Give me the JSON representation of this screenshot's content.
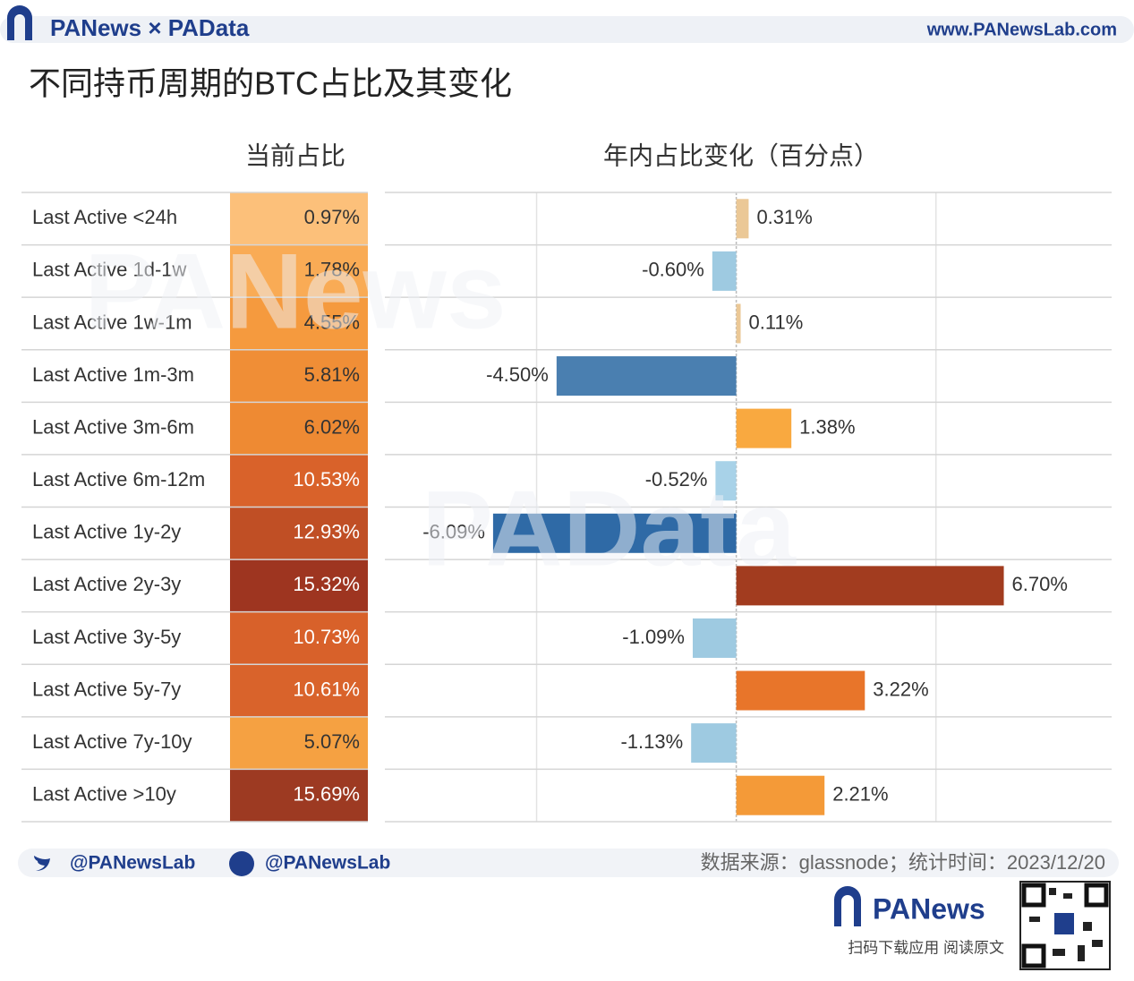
{
  "header": {
    "brand": "PANews × PAData",
    "url": "www.PANewsLab.com",
    "title": "不同持币周期的BTC占比及其变化"
  },
  "watermarks": [
    "PANews",
    "PAData"
  ],
  "current_share": {
    "title": "当前占比",
    "values": [
      0.97,
      1.78,
      4.55,
      5.81,
      6.02,
      10.53,
      12.93,
      15.32,
      10.73,
      10.61,
      5.07,
      15.69
    ],
    "value_labels": [
      "0.97%",
      "1.78%",
      "4.55%",
      "5.81%",
      "6.02%",
      "10.53%",
      "12.93%",
      "15.32%",
      "10.73%",
      "10.61%",
      "5.07%",
      "15.69%"
    ],
    "colors": [
      "#fcc07a",
      "#f9ab55",
      "#f59a3e",
      "#f08e36",
      "#ee8a33",
      "#d9622a",
      "#c04f25",
      "#9e3520",
      "#d8612a",
      "#d9632b",
      "#f5a142",
      "#9d3a22"
    ]
  },
  "chart_data": {
    "type": "bar",
    "orientation": "horizontal",
    "title": "年内占比变化（百分点）",
    "categories": [
      "Last Active <24h",
      "Last Active 1d-1w",
      "Last Active 1w-1m",
      "Last Active 1m-3m",
      "Last Active 3m-6m",
      "Last Active 6m-12m",
      "Last Active 1y-2y",
      "Last Active 2y-3y",
      "Last Active 3y-5y",
      "Last Active 5y-7y",
      "Last Active 7y-10y",
      "Last Active >10y"
    ],
    "values": [
      0.31,
      -0.6,
      0.11,
      -4.5,
      1.38,
      -0.52,
      -6.09,
      6.7,
      -1.09,
      3.22,
      -1.13,
      2.21
    ],
    "value_labels": [
      "0.31%",
      "-0.60%",
      "0.11%",
      "-4.50%",
      "1.38%",
      "-0.52%",
      "-6.09%",
      "6.70%",
      "-1.09%",
      "3.22%",
      "-1.13%",
      "2.21%"
    ],
    "colors": [
      "#ebc896",
      "#9ecae1",
      "#ebc896",
      "#4a7fb0",
      "#f9a940",
      "#a8d2e8",
      "#2f6aa6",
      "#a23c1f",
      "#9ecae1",
      "#e8752a",
      "#9ecae1",
      "#f49a38"
    ],
    "xlim": [
      -8.8,
      9.4
    ],
    "xticks": [
      -5,
      0,
      5
    ],
    "grid": true
  },
  "footer": {
    "twitter": "@PANewsLab",
    "facebook": "@PANewsLab",
    "source": "数据来源：glassnode；统计时间：2023/12/20",
    "app_name": "PANews",
    "app_caption": "扫码下载应用  阅读原文"
  }
}
